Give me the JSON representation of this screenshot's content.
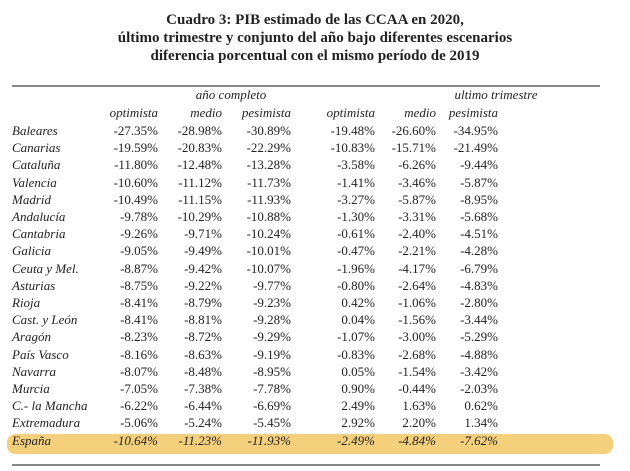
{
  "title_lines": [
    "Cuadro 3: PIB estimado de las CCAA en 2020,",
    "último trimestre y conjunto del año bajo diferentes escenarios",
    "diferencia porcentual con el mismo período de 2019"
  ],
  "groups": [
    "año completo",
    "ultimo trimestre"
  ],
  "columns": [
    "optimista",
    "medio",
    "pesimista",
    "optimista",
    "medio",
    "pesimista"
  ],
  "highlight_color": "#f2c866",
  "rows": [
    {
      "label": "Baleares",
      "values": [
        "-27.35%",
        "-28.98%",
        "-30.89%",
        "-19.48%",
        "-26.60%",
        "-34.95%"
      ]
    },
    {
      "label": "Canarias",
      "values": [
        "-19.59%",
        "-20.83%",
        "-22.29%",
        "-10.83%",
        "-15.71%",
        "-21.49%"
      ]
    },
    {
      "label": "Cataluña",
      "values": [
        "-11.80%",
        "-12.48%",
        "-13.28%",
        "-3.58%",
        "-6.26%",
        "-9.44%"
      ]
    },
    {
      "label": "Valencia",
      "values": [
        "-10.60%",
        "-11.12%",
        "-11.73%",
        "-1.41%",
        "-3.46%",
        "-5.87%"
      ]
    },
    {
      "label": "Madrid",
      "values": [
        "-10.49%",
        "-11.15%",
        "-11.93%",
        "-3.27%",
        "-5.87%",
        "-8.95%"
      ]
    },
    {
      "label": "Andalucía",
      "values": [
        "-9.78%",
        "-10.29%",
        "-10.88%",
        "-1.30%",
        "-3.31%",
        "-5.68%"
      ]
    },
    {
      "label": "Cantabria",
      "values": [
        "-9.26%",
        "-9.71%",
        "-10.24%",
        "-0.61%",
        "-2.40%",
        "-4.51%"
      ]
    },
    {
      "label": "Galicia",
      "values": [
        "-9.05%",
        "-9.49%",
        "-10.01%",
        "-0.47%",
        "-2.21%",
        "-4.28%"
      ]
    },
    {
      "label": "Ceuta y Mel.",
      "values": [
        "-8.87%",
        "-9.42%",
        "-10.07%",
        "-1.96%",
        "-4.17%",
        "-6.79%"
      ]
    },
    {
      "label": "Asturias",
      "values": [
        "-8.75%",
        "-9.22%",
        "-9.77%",
        "-0.80%",
        "-2.64%",
        "-4.83%"
      ]
    },
    {
      "label": "Rioja",
      "values": [
        "-8.41%",
        "-8.79%",
        "-9.23%",
        "0.42%",
        "-1.06%",
        "-2.80%"
      ]
    },
    {
      "label": "Cast. y León",
      "values": [
        "-8.41%",
        "-8.81%",
        "-9.28%",
        "0.04%",
        "-1.56%",
        "-3.44%"
      ]
    },
    {
      "label": "Aragón",
      "values": [
        "-8.23%",
        "-8.72%",
        "-9.29%",
        "-1.07%",
        "-3.00%",
        "-5.29%"
      ]
    },
    {
      "label": "País Vasco",
      "values": [
        "-8.16%",
        "-8.63%",
        "-9.19%",
        "-0.83%",
        "-2.68%",
        "-4.88%"
      ]
    },
    {
      "label": "Navarra",
      "values": [
        "-8.07%",
        "-8.48%",
        "-8.95%",
        "0.05%",
        "-1.54%",
        "-3.42%"
      ]
    },
    {
      "label": "Murcia",
      "values": [
        "-7.05%",
        "-7.38%",
        "-7.78%",
        "0.90%",
        "-0.44%",
        "-2.03%"
      ]
    },
    {
      "label": "C.- la Mancha",
      "values": [
        "-6.22%",
        "-6.44%",
        "-6.69%",
        "2.49%",
        "1.63%",
        "0.62%"
      ]
    },
    {
      "label": "Extremadura",
      "values": [
        "-5.06%",
        "-5.24%",
        "-5.45%",
        "2.92%",
        "2.20%",
        "1.34%"
      ]
    },
    {
      "label": "España",
      "values": [
        "-10.64%",
        "-11.23%",
        "-11.93%",
        "-2.49%",
        "-4.84%",
        "-7.62%"
      ]
    }
  ]
}
